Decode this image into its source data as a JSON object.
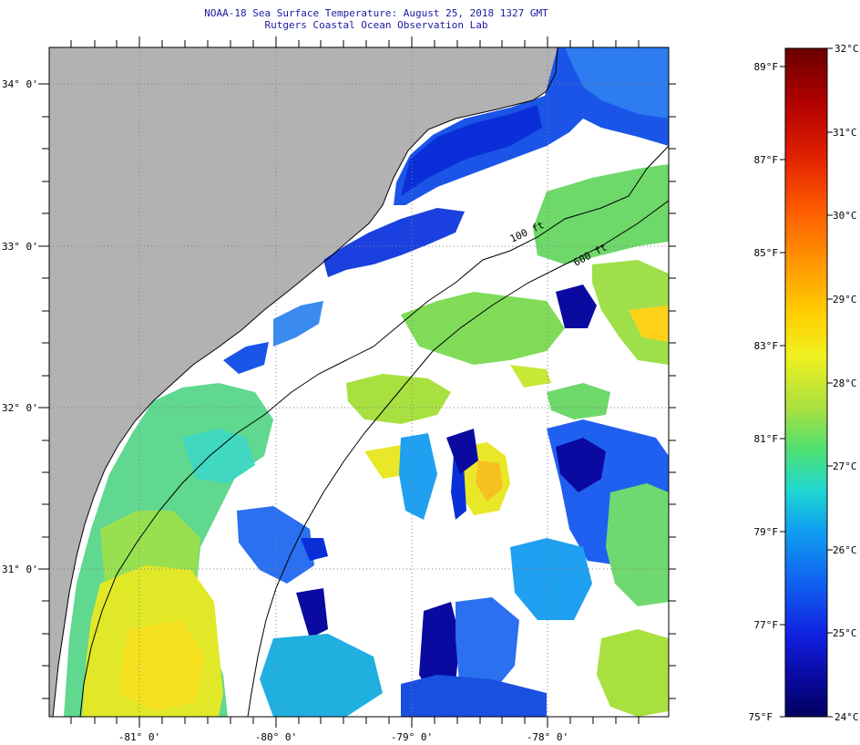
{
  "header": {
    "title": "NOAA-18 Sea Surface Temperature:  August 25, 2018 1327 GMT",
    "subtitle": "Rutgers Coastal Ocean Observation Lab"
  },
  "map": {
    "lat_labels": [
      "34° 0'",
      "33° 0'",
      "32° 0'",
      "31° 0'"
    ],
    "lon_labels": [
      "-81° 0'",
      "-80° 0'",
      "-79° 0'",
      "-78° 0'"
    ],
    "isobath_labels": [
      "100 ft",
      "600 ft"
    ]
  },
  "colorbar": {
    "fahrenheit_labels": [
      "89°F",
      "87°F",
      "85°F",
      "83°F",
      "81°F",
      "79°F",
      "77°F",
      "75°F"
    ],
    "celsius_labels": [
      "32°C",
      "31°C",
      "30°C",
      "29°C",
      "28°C",
      "27°C",
      "26°C",
      "25°C",
      "24°C"
    ],
    "colors": [
      "#6b0000",
      "#b00000",
      "#e02000",
      "#ff5a00",
      "#ff9600",
      "#ffd000",
      "#f0f020",
      "#a8e040",
      "#50e070",
      "#20d8d0",
      "#10a0f0",
      "#1060f0",
      "#1020e0",
      "#0a0aa0",
      "#000060"
    ]
  },
  "colors": {
    "land": "#b2b2b2",
    "cloud": "#ffffff",
    "text": "#1a1aa0"
  }
}
